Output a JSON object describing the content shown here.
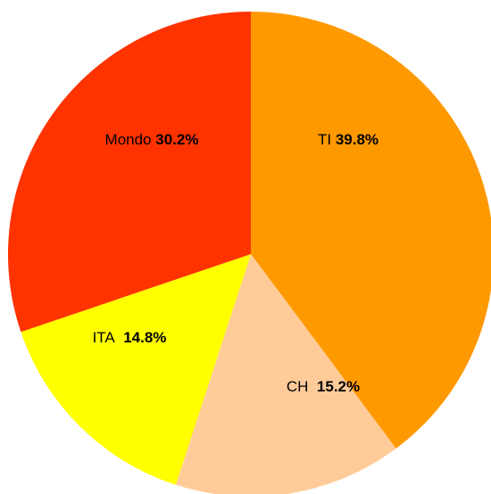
{
  "chart_data": {
    "type": "pie",
    "categories": [
      "TI",
      "CH",
      "ITA",
      "Mondo"
    ],
    "values": [
      39.8,
      15.2,
      14.8,
      30.2
    ],
    "value_labels": [
      "39.8%",
      "15.2%",
      "14.8%",
      "30.2%"
    ],
    "colors": [
      "#ff9900",
      "#ffcc99",
      "#ffff00",
      "#ff3300"
    ]
  }
}
